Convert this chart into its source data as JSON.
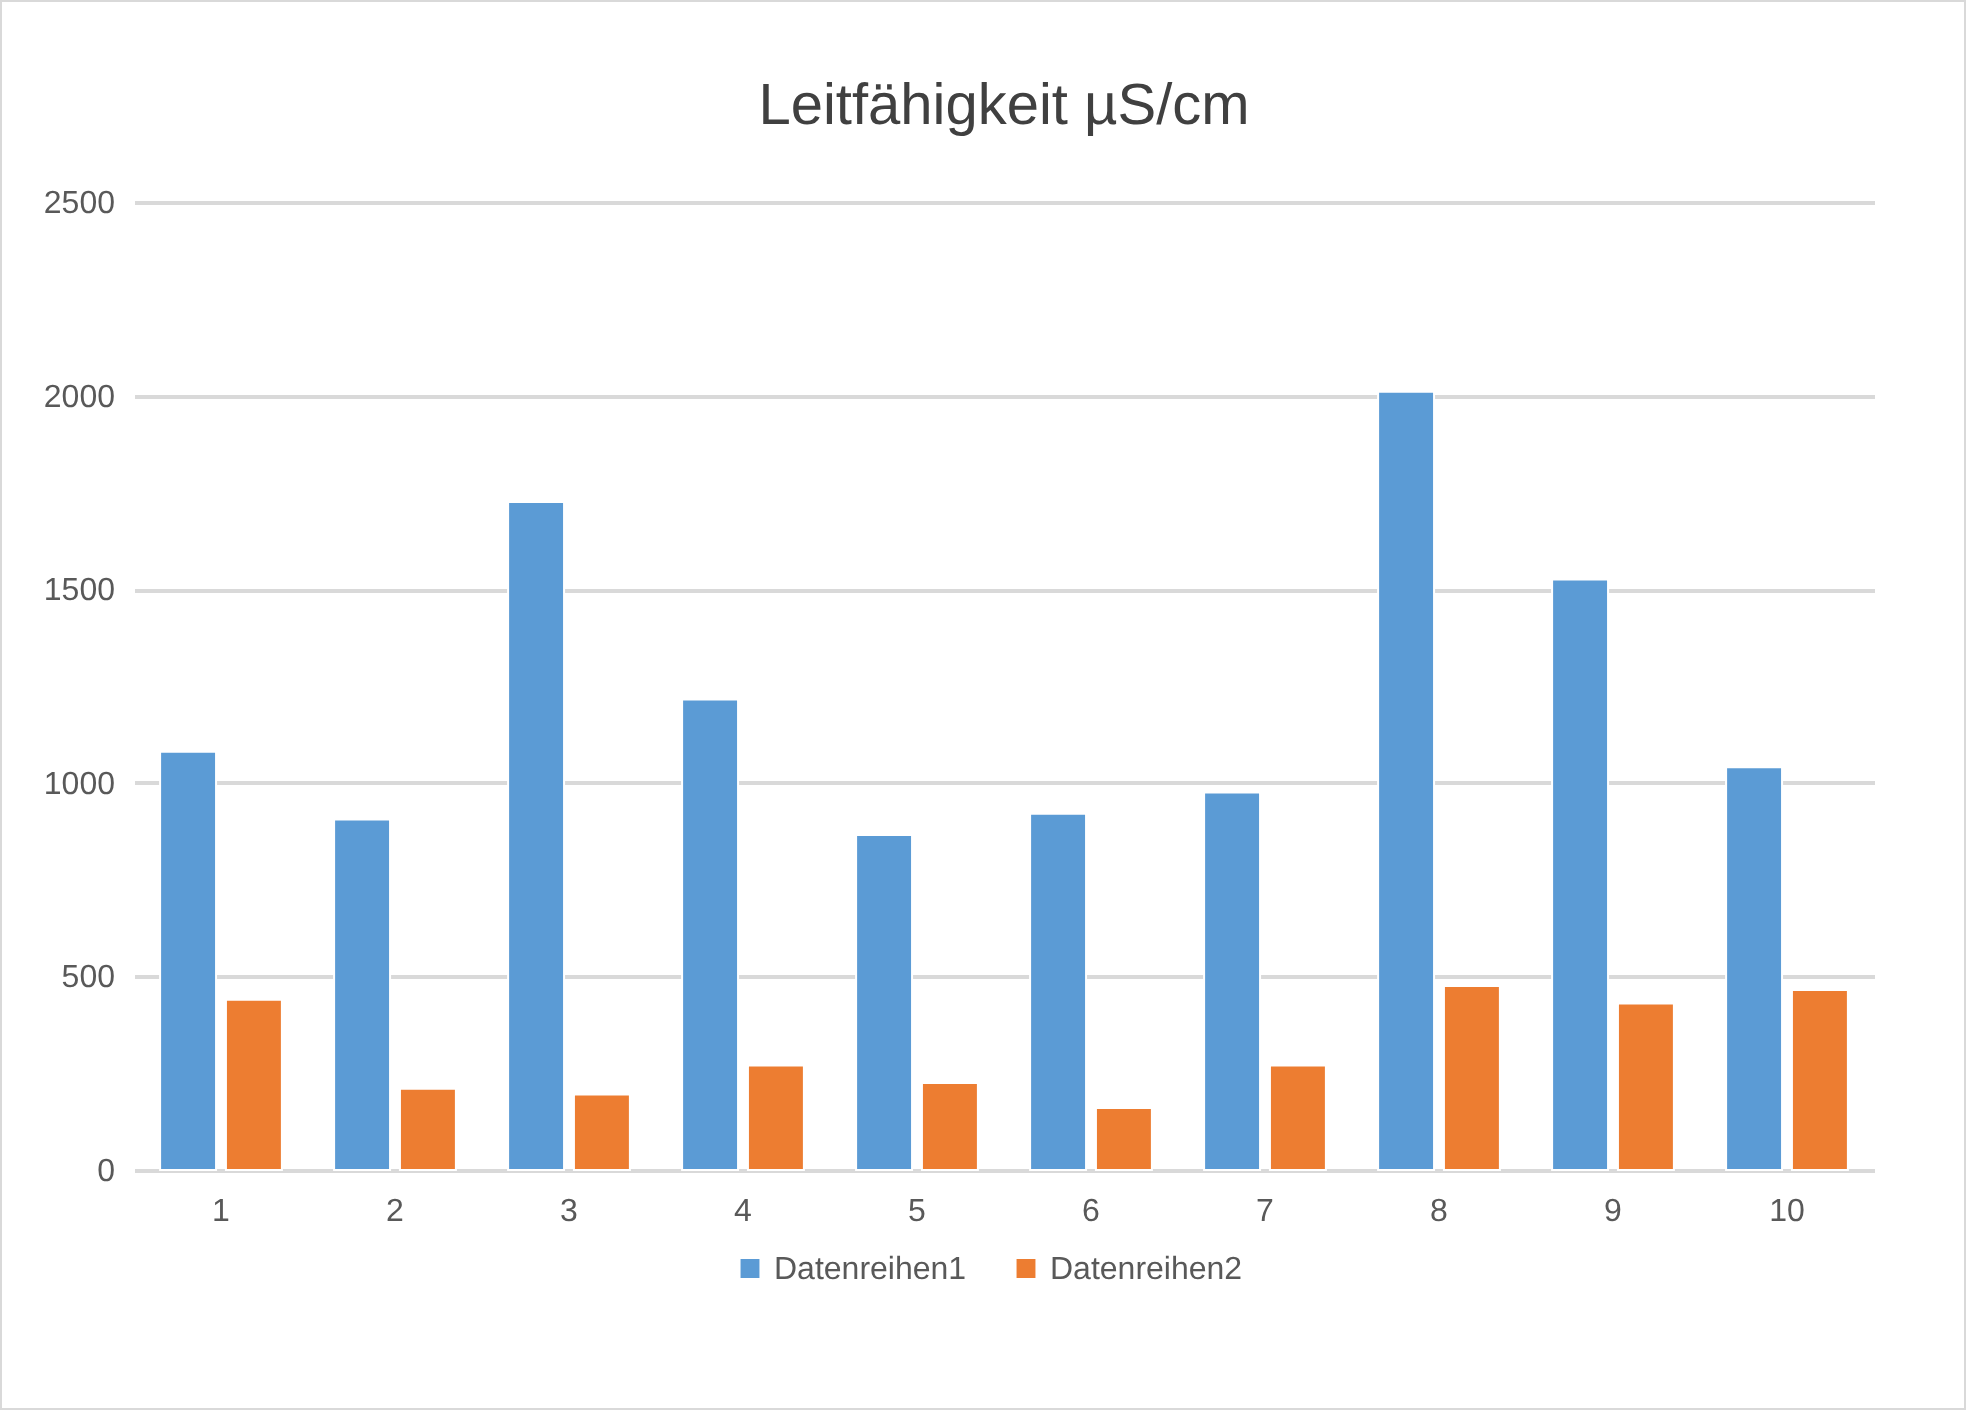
{
  "chart_data": {
    "type": "bar",
    "title": "Leitfähigkeit µS/cm",
    "categories": [
      "1",
      "2",
      "3",
      "4",
      "5",
      "6",
      "7",
      "8",
      "9",
      "10"
    ],
    "series": [
      {
        "name": "Datenreihen1",
        "color": "#5b9bd5",
        "values": [
          1080,
          905,
          1725,
          1215,
          865,
          920,
          975,
          2010,
          1525,
          1040
        ]
      },
      {
        "name": "Datenreihen2",
        "color": "#ed7d31",
        "values": [
          440,
          210,
          195,
          270,
          225,
          160,
          270,
          475,
          430,
          465
        ]
      }
    ],
    "ylim": [
      0,
      2500
    ],
    "yticks": [
      0,
      500,
      1000,
      1500,
      2000,
      2500
    ],
    "grid": "y",
    "legend": "bottom"
  }
}
